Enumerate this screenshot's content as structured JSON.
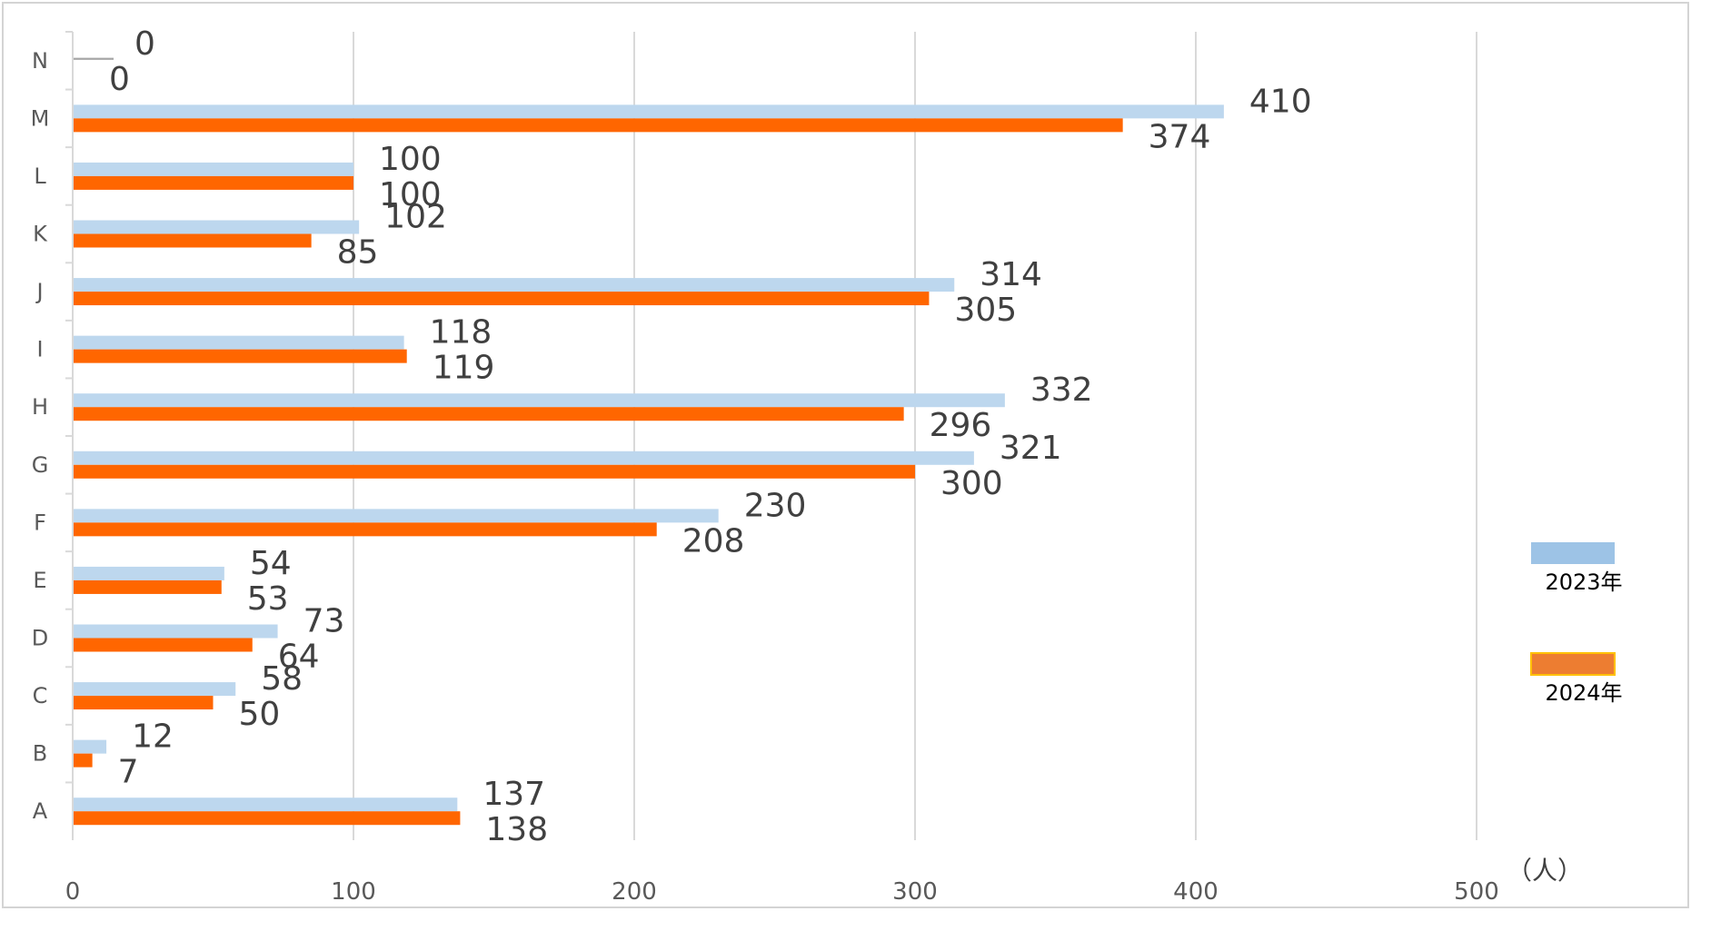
{
  "chart_data": {
    "type": "bar",
    "orientation": "horizontal",
    "categories": [
      "A",
      "B",
      "C",
      "D",
      "E",
      "F",
      "G",
      "H",
      "I",
      "J",
      "K",
      "L",
      "M",
      "N"
    ],
    "series": [
      {
        "name": "2023年",
        "color": "#bdd7ee",
        "legend_color": "#9dc3e6",
        "values": [
          137,
          12,
          58,
          73,
          54,
          230,
          321,
          332,
          118,
          314,
          102,
          100,
          410,
          0
        ]
      },
      {
        "name": "2024年",
        "color": "#ff6600",
        "legend_color": "#ed7d31",
        "values": [
          138,
          7,
          50,
          64,
          53,
          208,
          300,
          296,
          119,
          305,
          85,
          100,
          374,
          0
        ]
      }
    ],
    "xlim": [
      0,
      500
    ],
    "xticks": [
      0,
      100,
      200,
      300,
      400,
      500
    ],
    "unit_label": "（人）",
    "grid": "vertical",
    "legend_position": "right",
    "data_labels": true
  }
}
